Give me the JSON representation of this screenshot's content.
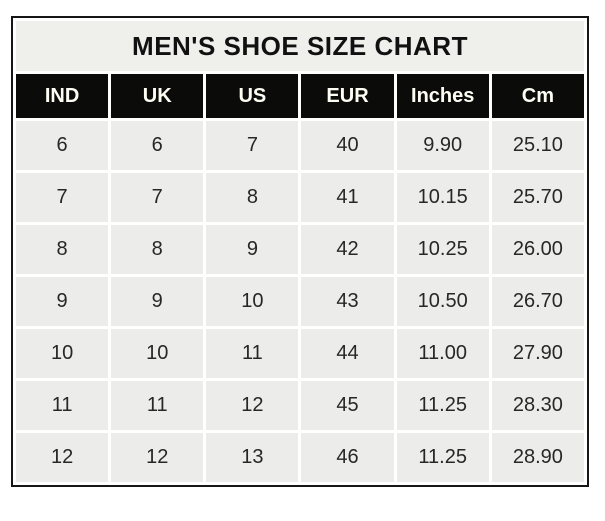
{
  "colors": {
    "page_background": "#ffffff",
    "title_background": "#efefec",
    "header_background": "#0b0b09",
    "header_text": "#fdfdf3",
    "cell_background": "#ececea",
    "cell_text": "#272727",
    "grid_line": "#ffffff",
    "outer_border": "#161616"
  },
  "chart_data": {
    "type": "table",
    "title": "MEN'S SHOE SIZE CHART",
    "columns": [
      "IND",
      "UK",
      "US",
      "EUR",
      "Inches",
      "Cm"
    ],
    "rows": [
      [
        "6",
        "6",
        "7",
        "40",
        "9.90",
        "25.10"
      ],
      [
        "7",
        "7",
        "8",
        "41",
        "10.15",
        "25.70"
      ],
      [
        "8",
        "8",
        "9",
        "42",
        "10.25",
        "26.00"
      ],
      [
        "9",
        "9",
        "10",
        "43",
        "10.50",
        "26.70"
      ],
      [
        "10",
        "10",
        "11",
        "44",
        "11.00",
        "27.90"
      ],
      [
        "11",
        "11",
        "12",
        "45",
        "11.25",
        "28.30"
      ],
      [
        "12",
        "12",
        "13",
        "46",
        "11.25",
        "28.90"
      ]
    ]
  }
}
